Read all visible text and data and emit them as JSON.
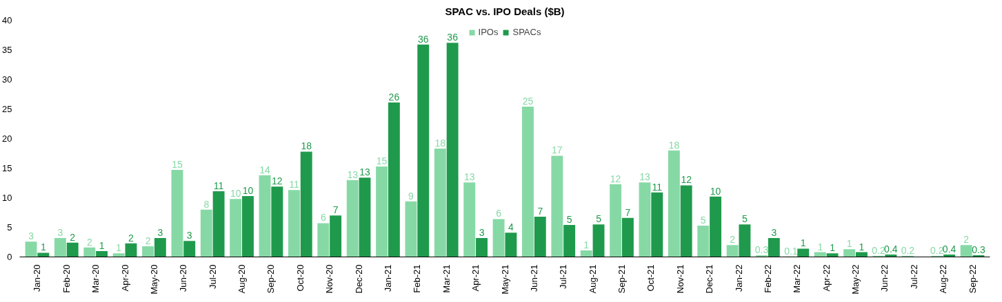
{
  "chart_data": {
    "type": "bar",
    "title": "SPAC vs. IPO Deals ($B)",
    "categories": [
      "Jan-20",
      "Feb-20",
      "Mar-20",
      "Apr-20",
      "May-20",
      "Jun-20",
      "Jul-20",
      "Aug-20",
      "Sep-20",
      "Oct-20",
      "Nov-20",
      "Dec-20",
      "Jan-21",
      "Feb-21",
      "Mar-21",
      "Apr-21",
      "May-21",
      "Jun-21",
      "Jul-21",
      "Aug-21",
      "Sep-21",
      "Oct-21",
      "Nov-21",
      "Dec-21",
      "Jan-22",
      "Feb-22",
      "Mar-22",
      "Apr-22",
      "May-22",
      "Jun-22",
      "Jul-22",
      "Aug-22",
      "Sep-22"
    ],
    "series": [
      {
        "name": "IPOs",
        "color": "#86d9a5",
        "values": [
          2.6,
          3.2,
          1.6,
          0.6,
          1.8,
          14.7,
          8,
          9.8,
          13.8,
          11.3,
          5.7,
          13,
          15.3,
          9.4,
          18.3,
          12.6,
          6.4,
          25.4,
          17.1,
          1.1,
          12.3,
          12.6,
          18,
          5.3,
          2,
          0.3,
          0.1,
          0.8,
          1.3,
          0.2,
          0.2,
          0.2,
          2
        ],
        "value_labels": [
          "3",
          "3",
          "2",
          "1",
          "2",
          "15",
          "8",
          "10",
          "14",
          "11",
          "6",
          "13",
          "15",
          "9",
          "18",
          "13",
          "6",
          "25",
          "17",
          "1",
          "12",
          "13",
          "18",
          "5",
          "2",
          "0.3",
          "0.1",
          "1",
          "1",
          "0.2",
          "0.2",
          "0.2",
          "2"
        ]
      },
      {
        "name": "SPACs",
        "color": "#1f9a4c",
        "values": [
          0.7,
          2.4,
          1,
          2.3,
          3.2,
          2.7,
          11.1,
          10.3,
          11.9,
          17.8,
          7,
          13.4,
          26.1,
          35.9,
          36.2,
          3.2,
          4.1,
          6.8,
          5.4,
          5.5,
          6.6,
          10.9,
          12.1,
          10.2,
          5.5,
          3.2,
          1.4,
          0.6,
          0.8,
          0.4,
          null,
          0.4,
          0.3
        ],
        "value_labels": [
          "1",
          "2",
          "1",
          "2",
          "3",
          "3",
          "11",
          "10",
          "12",
          "18",
          "7",
          "13",
          "26",
          "36",
          "36",
          "3",
          "4",
          "7",
          "5",
          "5",
          "7",
          "11",
          "12",
          "10",
          "5",
          "3",
          "1",
          "1",
          "1",
          "0.4",
          null,
          "0.4",
          "0.3"
        ]
      }
    ],
    "ylim": [
      0,
      40
    ],
    "yticks": [
      0,
      5,
      10,
      15,
      20,
      25,
      30,
      35,
      40
    ],
    "grid": false,
    "legend": "top"
  }
}
